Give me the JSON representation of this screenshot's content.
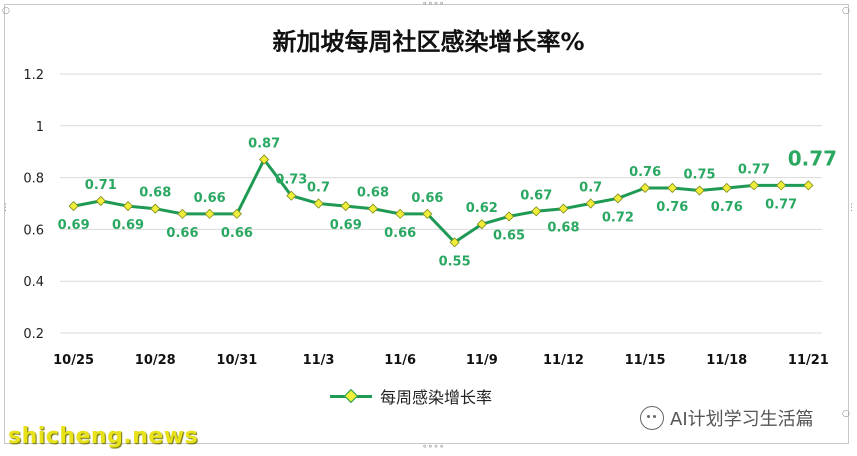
{
  "chart_data": {
    "type": "line",
    "title": "新加坡每周社区感染增长率%",
    "ylim": [
      0.2,
      1.2
    ],
    "yticks": [
      "0.2",
      "0.4",
      "0.6",
      "0.8",
      "1",
      "1.2"
    ],
    "xticks": [
      "10/25",
      "10/28",
      "10/31",
      "11/3",
      "11/6",
      "11/9",
      "11/12",
      "11/15",
      "11/18",
      "11/21"
    ],
    "grid": true,
    "legend_position": "bottom",
    "series": [
      {
        "name": "每周感染增长率",
        "color": "#1f9a55",
        "marker_color": "#f0ee3a",
        "x": [
          "10/25",
          "10/26",
          "10/27",
          "10/28",
          "10/29",
          "10/30",
          "10/31",
          "11/1",
          "11/2",
          "11/3",
          "11/4",
          "11/5",
          "11/6",
          "11/7",
          "11/8",
          "11/9",
          "11/10",
          "11/11",
          "11/12",
          "11/13",
          "11/14",
          "11/15",
          "11/16",
          "11/17",
          "11/18",
          "11/19",
          "11/20",
          "11/21"
        ],
        "values": [
          0.69,
          0.71,
          0.69,
          0.68,
          0.66,
          0.66,
          0.66,
          0.87,
          0.73,
          0.7,
          0.69,
          0.68,
          0.66,
          0.66,
          0.55,
          0.62,
          0.65,
          0.67,
          0.68,
          0.7,
          0.72,
          0.76,
          0.76,
          0.75,
          0.76,
          0.77,
          0.77,
          0.77
        ],
        "labels": [
          "0.69",
          "0.71",
          "0.69",
          "0.68",
          "0.66",
          "0.66",
          "0.66",
          "0.87",
          "0.73",
          "0.7",
          "0.69",
          "0.68",
          "0.66",
          "0.66",
          "0.55",
          "0.62",
          "0.65",
          "0.67",
          "0.68",
          "0.7",
          "0.72",
          "0.76",
          "0.76",
          "0.75",
          "0.76",
          "0.77",
          "0.77",
          "0.77"
        ],
        "label_pos": [
          "b",
          "a",
          "b",
          "a",
          "b",
          "a",
          "b",
          "a",
          "a",
          "a",
          "b",
          "a",
          "b",
          "a",
          "b",
          "a",
          "b",
          "a",
          "b",
          "a",
          "b",
          "a",
          "b",
          "a",
          "b",
          "a",
          "b",
          "a"
        ],
        "highlight_last": true
      }
    ]
  },
  "watermark": {
    "left": "shicheng.news",
    "right": "AI计划学习生活篇",
    "icon": "wechat-icon"
  }
}
